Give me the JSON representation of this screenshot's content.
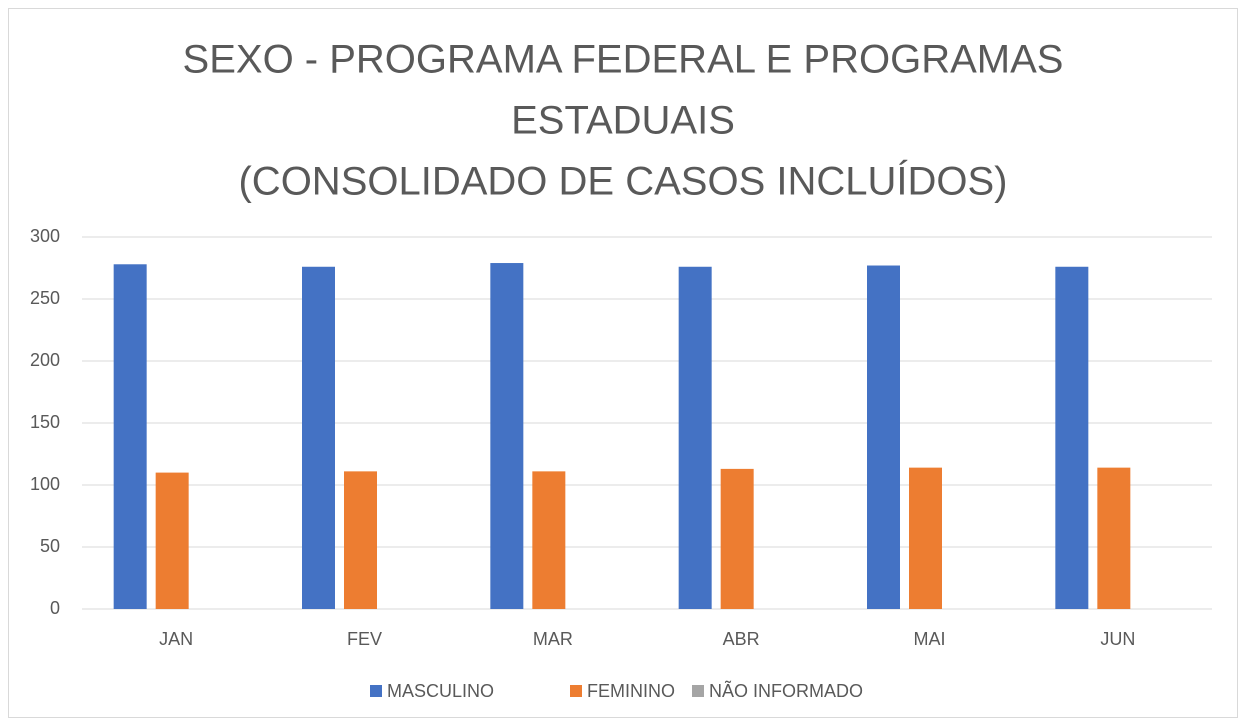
{
  "chart_data": {
    "type": "bar",
    "title": [
      "SEXO - PROGRAMA FEDERAL E PROGRAMAS",
      "ESTADUAIS",
      "(CONSOLIDADO DE CASOS INCLUÍDOS)"
    ],
    "categories": [
      "JAN",
      "FEV",
      "MAR",
      "ABR",
      "MAI",
      "JUN"
    ],
    "series": [
      {
        "name": "MASCULINO",
        "color": "#4472c4",
        "values": [
          278,
          276,
          279,
          276,
          277,
          276
        ]
      },
      {
        "name": "FEMININO",
        "color": "#ed7d31",
        "values": [
          110,
          111,
          111,
          113,
          114,
          114
        ]
      },
      {
        "name": "NÃO INFORMADO",
        "color": "#a5a5a5",
        "values": [
          0,
          0,
          0,
          0,
          0,
          0
        ]
      }
    ],
    "ylim": [
      0,
      300
    ],
    "yticks": [
      0,
      50,
      100,
      150,
      200,
      250,
      300
    ],
    "grid": true,
    "legend": "bottom"
  }
}
